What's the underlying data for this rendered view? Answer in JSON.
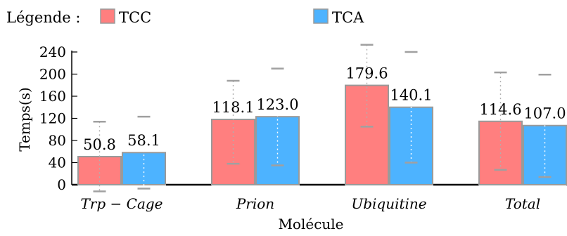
{
  "chart_data": {
    "type": "bar",
    "legend_title": "Légende :",
    "legend_placement": "top-left",
    "categories": [
      "Trp − Cage",
      "Prion",
      "Ubiquitine",
      "Total"
    ],
    "xlabel": "Molécule",
    "ylabel": "Temps(s)",
    "ylim": [
      0,
      240
    ],
    "yticks": [
      0,
      40,
      80,
      120,
      160,
      200,
      240
    ],
    "grid": false,
    "series": [
      {
        "name": "TCC",
        "color": "#ff7f7f",
        "values": [
          50.8,
          118.1,
          179.6,
          114.6
        ],
        "value_labels": [
          "50.8",
          "118.1",
          "179.6",
          "114.6"
        ],
        "error_low": [
          -12,
          38,
          105,
          27
        ],
        "error_high": [
          114,
          188,
          253,
          203
        ]
      },
      {
        "name": "TCA",
        "color": "#4db3ff",
        "values": [
          58.1,
          123.0,
          140.1,
          107.0
        ],
        "value_labels": [
          "58.1",
          "123.0",
          "140.1",
          "107.0"
        ],
        "error_low": [
          -7,
          35,
          40,
          14
        ],
        "error_high": [
          123,
          210,
          240,
          199
        ]
      }
    ]
  }
}
